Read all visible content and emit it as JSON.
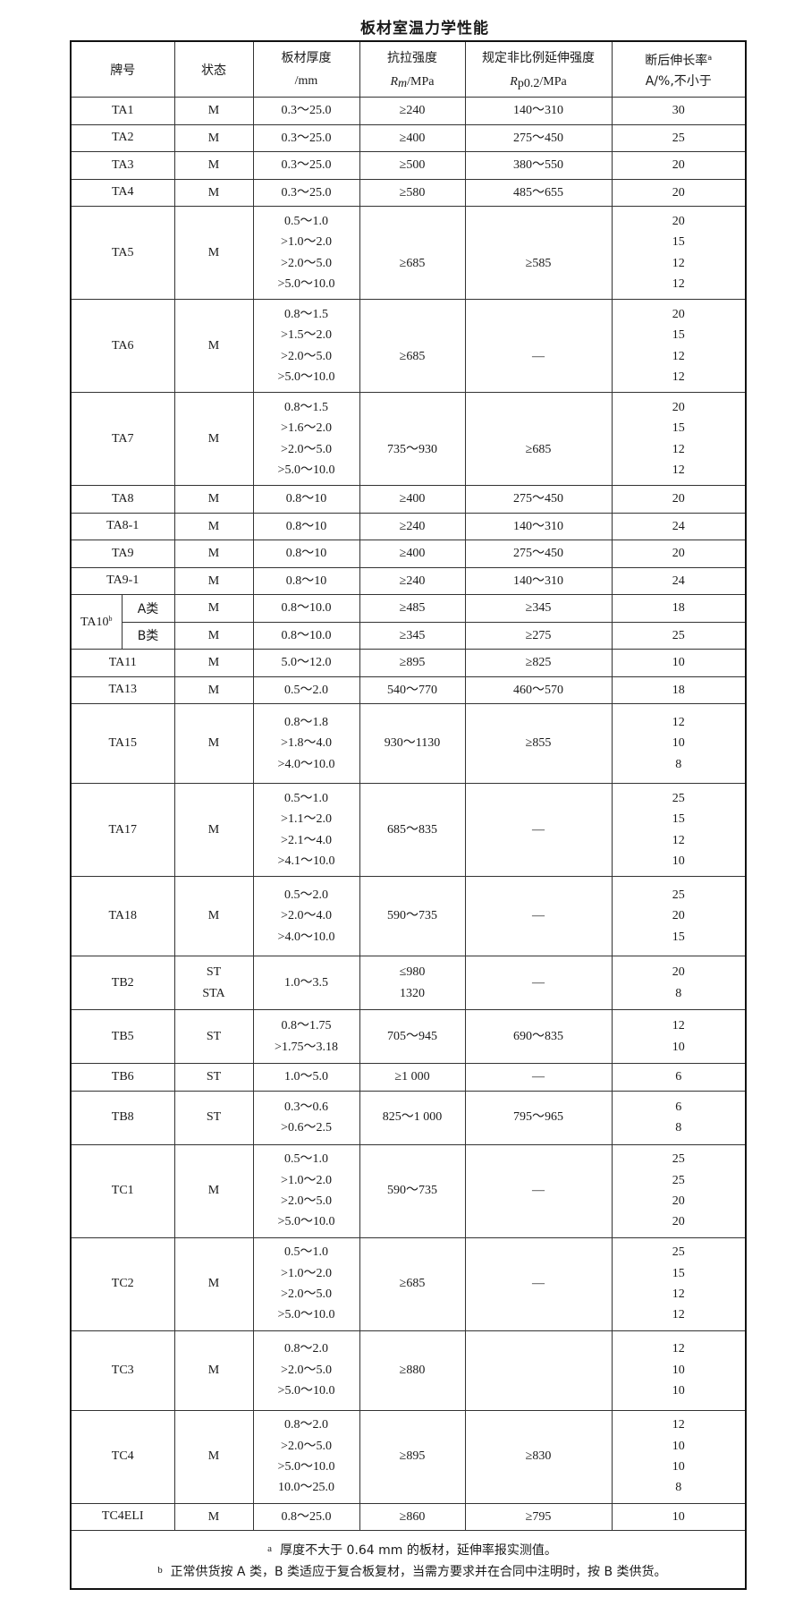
{
  "title": "板材室温力学性能",
  "header": {
    "grade": "牌号",
    "state": "状态",
    "thickness": {
      "line1": "板材厚度",
      "line2": "/mm"
    },
    "tensile": {
      "line1": "抗拉强度",
      "symbol": "R",
      "sub": "m",
      "unit": "/MPa"
    },
    "proof": {
      "line1": "规定非比例延伸强度",
      "symbol": "R",
      "sub": "p0.2",
      "unit": "/MPa"
    },
    "elongation": {
      "line1": "断后伸长率",
      "sup": "a",
      "line2": "A/%,不小于"
    }
  },
  "rows": [
    {
      "grade": "TA1",
      "state": [
        "M"
      ],
      "thickness": [
        "0.3～25.0"
      ],
      "rm": [
        "≥240"
      ],
      "rp": [
        "140～310"
      ],
      "a": [
        "30"
      ]
    },
    {
      "grade": "TA2",
      "state": [
        "M"
      ],
      "thickness": [
        "0.3～25.0"
      ],
      "rm": [
        "≥400"
      ],
      "rp": [
        "275～450"
      ],
      "a": [
        "25"
      ]
    },
    {
      "grade": "TA3",
      "state": [
        "M"
      ],
      "thickness": [
        "0.3～25.0"
      ],
      "rm": [
        "≥500"
      ],
      "rp": [
        "380～550"
      ],
      "a": [
        "20"
      ]
    },
    {
      "grade": "TA4",
      "state": [
        "M"
      ],
      "thickness": [
        "0.3～25.0"
      ],
      "rm": [
        "≥580"
      ],
      "rp": [
        "485～655"
      ],
      "a": [
        "20"
      ]
    },
    {
      "grade": "TA5",
      "state": [
        "M"
      ],
      "thickness": [
        "0.5～1.0",
        ">1.0～2.0",
        ">2.0～5.0",
        ">5.0～10.0"
      ],
      "rm": [
        "≥685"
      ],
      "rp": [
        "≥585"
      ],
      "a": [
        "20",
        "15",
        "12",
        "12"
      ]
    },
    {
      "grade": "TA6",
      "state": [
        "M"
      ],
      "thickness": [
        "0.8～1.5",
        ">1.5～2.0",
        ">2.0～5.0",
        ">5.0～10.0"
      ],
      "rm": [
        "≥685"
      ],
      "rp": [
        "—"
      ],
      "a": [
        "20",
        "15",
        "12",
        "12"
      ]
    },
    {
      "grade": "TA7",
      "state": [
        "M"
      ],
      "thickness": [
        "0.8～1.5",
        ">1.6～2.0",
        ">2.0～5.0",
        ">5.0～10.0"
      ],
      "rm": [
        "735～930"
      ],
      "rp": [
        "≥685"
      ],
      "a": [
        "20",
        "15",
        "12",
        "12"
      ]
    },
    {
      "grade": "TA8",
      "state": [
        "M"
      ],
      "thickness": [
        "0.8～10"
      ],
      "rm": [
        "≥400"
      ],
      "rp": [
        "275～450"
      ],
      "a": [
        "20"
      ]
    },
    {
      "grade": "TA8-1",
      "state": [
        "M"
      ],
      "thickness": [
        "0.8～10"
      ],
      "rm": [
        "≥240"
      ],
      "rp": [
        "140～310"
      ],
      "a": [
        "24"
      ]
    },
    {
      "grade": "TA9",
      "state": [
        "M"
      ],
      "thickness": [
        "0.8～10"
      ],
      "rm": [
        "≥400"
      ],
      "rp": [
        "275～450"
      ],
      "a": [
        "20"
      ]
    },
    {
      "grade": "TA9-1",
      "state": [
        "M"
      ],
      "thickness": [
        "0.8～10"
      ],
      "rm": [
        "≥240"
      ],
      "rp": [
        "140～310"
      ],
      "a": [
        "24"
      ]
    },
    {
      "grade": "TA10",
      "sup": "b",
      "cls": "A类",
      "state": [
        "M"
      ],
      "thickness": [
        "0.8～10.0"
      ],
      "rm": [
        "≥485"
      ],
      "rp": [
        "≥345"
      ],
      "a": [
        "18"
      ]
    },
    {
      "grade": "TA10",
      "sup": "b",
      "cls": "B类",
      "state": [
        "M"
      ],
      "thickness": [
        "0.8～10.0"
      ],
      "rm": [
        "≥345"
      ],
      "rp": [
        "≥275"
      ],
      "a": [
        "25"
      ]
    },
    {
      "grade": "TA11",
      "state": [
        "M"
      ],
      "thickness": [
        "5.0～12.0"
      ],
      "rm": [
        "≥895"
      ],
      "rp": [
        "≥825"
      ],
      "a": [
        "10"
      ]
    },
    {
      "grade": "TA13",
      "state": [
        "M"
      ],
      "thickness": [
        "0.5～2.0"
      ],
      "rm": [
        "540～770"
      ],
      "rp": [
        "460～570"
      ],
      "a": [
        "18"
      ]
    },
    {
      "grade": "TA15",
      "state": [
        "M"
      ],
      "thickness": [
        "0.8～1.8",
        ">1.8～4.0",
        ">4.0～10.0"
      ],
      "rm": [
        "930～1130"
      ],
      "rp": [
        "≥855"
      ],
      "a": [
        "12",
        "10",
        "8"
      ]
    },
    {
      "grade": "TA17",
      "state": [
        "M"
      ],
      "thickness": [
        "0.5～1.0",
        ">1.1～2.0",
        ">2.1～4.0",
        ">4.1～10.0"
      ],
      "rm": [
        "685～835"
      ],
      "rp": [
        "—"
      ],
      "a": [
        "25",
        "15",
        "12",
        "10"
      ]
    },
    {
      "grade": "TA18",
      "state": [
        "M"
      ],
      "thickness": [
        "0.5～2.0",
        ">2.0～4.0",
        ">4.0～10.0"
      ],
      "rm": [
        "590～735"
      ],
      "rp": [
        "—"
      ],
      "a": [
        "25",
        "20",
        "15"
      ]
    },
    {
      "grade": "TB2",
      "state": [
        "ST",
        "STA"
      ],
      "thickness": [
        "1.0～3.5"
      ],
      "rm": [
        "≤980",
        "1320"
      ],
      "rp": [
        "—"
      ],
      "a": [
        "20",
        "8"
      ]
    },
    {
      "grade": "TB5",
      "state": [
        "ST"
      ],
      "thickness": [
        "0.8～1.75",
        ">1.75～3.18"
      ],
      "rm": [
        "705～945"
      ],
      "rp": [
        "690～835"
      ],
      "a": [
        "12",
        "10"
      ]
    },
    {
      "grade": "TB6",
      "state": [
        "ST"
      ],
      "thickness": [
        "1.0～5.0"
      ],
      "rm": [
        "≥1 000"
      ],
      "rp": [
        "—"
      ],
      "a": [
        "6"
      ]
    },
    {
      "grade": "TB8",
      "state": [
        "ST"
      ],
      "thickness": [
        "0.3～0.6",
        ">0.6～2.5"
      ],
      "rm": [
        "825～1 000"
      ],
      "rp": [
        "795～965"
      ],
      "a": [
        "6",
        "8"
      ]
    },
    {
      "grade": "TC1",
      "state": [
        "M"
      ],
      "thickness": [
        "0.5～1.0",
        ">1.0～2.0",
        ">2.0～5.0",
        ">5.0～10.0"
      ],
      "rm": [
        "590～735"
      ],
      "rp": [
        "—"
      ],
      "a": [
        "25",
        "25",
        "20",
        "20"
      ]
    },
    {
      "grade": "TC2",
      "state": [
        "M"
      ],
      "thickness": [
        "0.5～1.0",
        ">1.0～2.0",
        ">2.0～5.0",
        ">5.0～10.0"
      ],
      "rm": [
        "≥685"
      ],
      "rp": [
        "—"
      ],
      "a": [
        "25",
        "15",
        "12",
        "12"
      ]
    },
    {
      "grade": "TC3",
      "state": [
        "M"
      ],
      "thickness": [
        "0.8～2.0",
        ">2.0～5.0",
        ">5.0～10.0"
      ],
      "rm": [
        "≥880"
      ],
      "rp": [
        ""
      ],
      "a": [
        "12",
        "10",
        "10"
      ]
    },
    {
      "grade": "TC4",
      "state": [
        "M"
      ],
      "thickness": [
        "0.8～2.0",
        ">2.0～5.0",
        ">5.0～10.0",
        "10.0～25.0"
      ],
      "rm": [
        "≥895"
      ],
      "rp": [
        "≥830"
      ],
      "a": [
        "12",
        "10",
        "10",
        "8"
      ]
    },
    {
      "grade": "TC4ELI",
      "state": [
        "M"
      ],
      "thickness": [
        "0.8～25.0"
      ],
      "rm": [
        "≥860"
      ],
      "rp": [
        "≥795"
      ],
      "a": [
        "10"
      ]
    }
  ],
  "footnotes": [
    {
      "marker": "a",
      "text": "厚度不大于 0.64 mm 的板材，延伸率报实测值。"
    },
    {
      "marker": "b",
      "text": "正常供货按 A 类，B 类适应于复合板复材，当需方要求并在合同中注明时，按 B 类供货。"
    }
  ]
}
